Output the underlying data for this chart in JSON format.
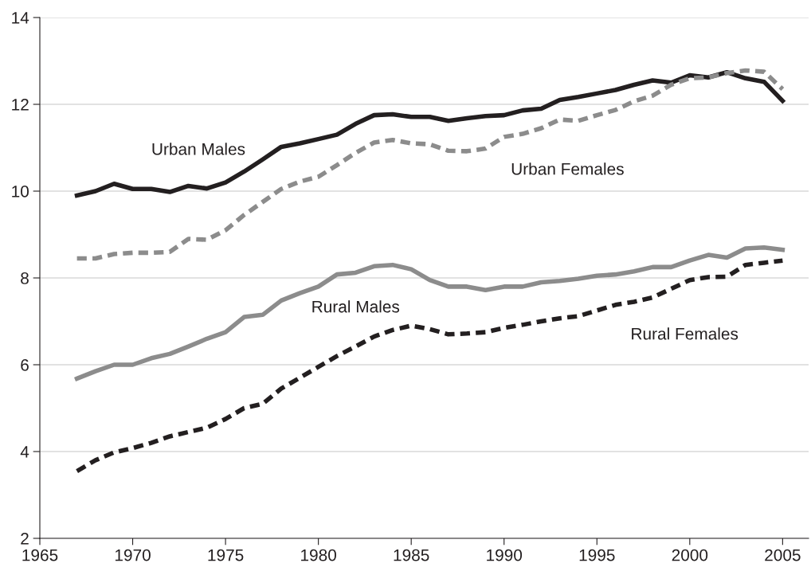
{
  "chart_data": {
    "type": "line",
    "x": [
      1967,
      1968,
      1969,
      1970,
      1971,
      1972,
      1973,
      1974,
      1975,
      1976,
      1977,
      1978,
      1979,
      1980,
      1981,
      1982,
      1983,
      1984,
      1985,
      1986,
      1987,
      1988,
      1989,
      1990,
      1991,
      1992,
      1993,
      1994,
      1995,
      1996,
      1997,
      1998,
      1999,
      2000,
      2001,
      2002,
      2003,
      2004,
      2005
    ],
    "series": [
      {
        "name": "Urban Males",
        "color": "#231f20",
        "line_style": "solid",
        "values": [
          9.9,
          10.0,
          10.17,
          10.05,
          10.05,
          9.98,
          10.12,
          10.06,
          10.2,
          10.45,
          10.73,
          11.02,
          11.1,
          11.2,
          11.3,
          11.55,
          11.75,
          11.77,
          11.71,
          11.71,
          11.62,
          11.68,
          11.73,
          11.75,
          11.86,
          11.9,
          12.1,
          12.17,
          12.25,
          12.33,
          12.45,
          12.55,
          12.5,
          12.67,
          12.62,
          12.74,
          12.6,
          12.52,
          12.08
        ]
      },
      {
        "name": "Urban Females",
        "color": "#8c8c8c",
        "line_style": "dashed",
        "values": [
          8.45,
          8.45,
          8.55,
          8.58,
          8.58,
          8.6,
          8.9,
          8.88,
          9.1,
          9.45,
          9.75,
          10.05,
          10.22,
          10.33,
          10.6,
          10.88,
          11.12,
          11.18,
          11.1,
          11.08,
          10.93,
          10.92,
          10.98,
          11.25,
          11.32,
          11.45,
          11.65,
          11.62,
          11.75,
          11.87,
          12.07,
          12.2,
          12.45,
          12.6,
          12.62,
          12.72,
          12.78,
          12.75,
          12.35
        ]
      },
      {
        "name": "Rural Males",
        "color": "#8c8c8c",
        "line_style": "solid",
        "values": [
          5.68,
          5.85,
          6.0,
          6.0,
          6.15,
          6.25,
          6.42,
          6.6,
          6.75,
          7.1,
          7.15,
          7.48,
          7.65,
          7.8,
          8.08,
          8.12,
          8.27,
          8.3,
          8.2,
          7.95,
          7.8,
          7.8,
          7.72,
          7.8,
          7.8,
          7.9,
          7.93,
          7.98,
          8.05,
          8.08,
          8.15,
          8.25,
          8.25,
          8.4,
          8.53,
          8.47,
          8.68,
          8.7,
          8.65
        ]
      },
      {
        "name": "Rural Females",
        "color": "#231f20",
        "line_style": "dashed",
        "values": [
          3.55,
          3.8,
          3.98,
          4.08,
          4.2,
          4.35,
          4.45,
          4.55,
          4.75,
          5.0,
          5.1,
          5.45,
          5.7,
          5.95,
          6.2,
          6.42,
          6.65,
          6.8,
          6.9,
          6.82,
          6.7,
          6.72,
          6.75,
          6.85,
          6.92,
          7.0,
          7.07,
          7.12,
          7.25,
          7.38,
          7.45,
          7.55,
          7.75,
          7.95,
          8.02,
          8.03,
          8.3,
          8.35,
          8.4
        ]
      }
    ],
    "xlim": [
      1965,
      2006.4
    ],
    "xticks": [
      1965,
      1970,
      1975,
      1980,
      1985,
      1990,
      1995,
      2000,
      2005
    ],
    "ylim": [
      2,
      14
    ],
    "yticks": [
      2,
      4,
      6,
      8,
      10,
      12,
      14
    ],
    "grid": "y",
    "marker": "none"
  }
}
